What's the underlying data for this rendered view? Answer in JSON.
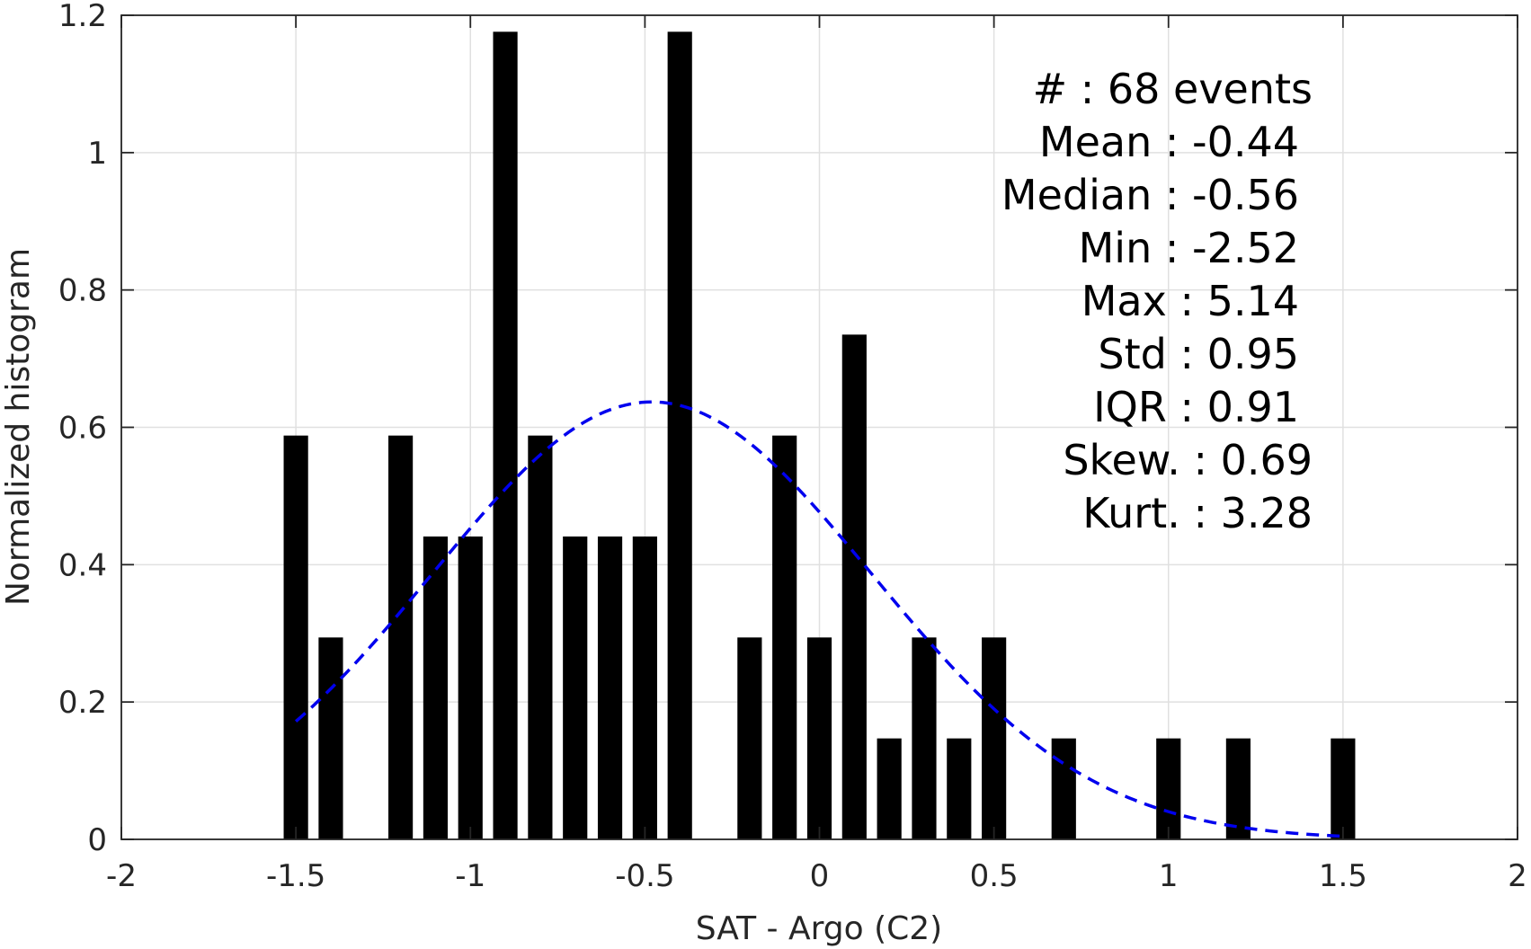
{
  "chart_data": {
    "type": "bar",
    "xlabel": "SAT - Argo (C2)",
    "ylabel": "Normalized histogram",
    "xlim": [
      -2,
      2
    ],
    "ylim": [
      0,
      1.2
    ],
    "xticks": [
      -2,
      -1.5,
      -1,
      -0.5,
      0,
      0.5,
      1,
      1.5,
      2
    ],
    "xtick_labels": [
      "-2",
      "-1.5",
      "-1",
      "-0.5",
      "0",
      "0.5",
      "1",
      "1.5",
      "2"
    ],
    "yticks": [
      0,
      0.2,
      0.4,
      0.6,
      0.8,
      1,
      1.2
    ],
    "ytick_labels": [
      "0",
      "0.2",
      "0.4",
      "0.6",
      "0.8",
      "1",
      "1.2"
    ],
    "grid": true,
    "bar_width": 0.07,
    "bars": [
      {
        "x": -1.5,
        "y": 0.588
      },
      {
        "x": -1.4,
        "y": 0.294
      },
      {
        "x": -1.2,
        "y": 0.588
      },
      {
        "x": -1.1,
        "y": 0.441
      },
      {
        "x": -1.0,
        "y": 0.441
      },
      {
        "x": -0.9,
        "y": 1.176
      },
      {
        "x": -0.8,
        "y": 0.588
      },
      {
        "x": -0.7,
        "y": 0.441
      },
      {
        "x": -0.6,
        "y": 0.441
      },
      {
        "x": -0.5,
        "y": 0.441
      },
      {
        "x": -0.4,
        "y": 1.176
      },
      {
        "x": -0.2,
        "y": 0.294
      },
      {
        "x": -0.1,
        "y": 0.588
      },
      {
        "x": 0.0,
        "y": 0.294
      },
      {
        "x": 0.1,
        "y": 0.735
      },
      {
        "x": 0.2,
        "y": 0.147
      },
      {
        "x": 0.3,
        "y": 0.294
      },
      {
        "x": 0.4,
        "y": 0.147
      },
      {
        "x": 0.5,
        "y": 0.294
      },
      {
        "x": 0.7,
        "y": 0.147
      },
      {
        "x": 1.0,
        "y": 0.147
      },
      {
        "x": 1.2,
        "y": 0.147
      },
      {
        "x": 1.5,
        "y": 0.147
      }
    ],
    "bar_color": "#000000",
    "fit_curve": {
      "style": "dashed",
      "color": "#0000ee",
      "x_range": [
        -1.5,
        1.5
      ],
      "mean": -0.48,
      "peak": 0.637,
      "sigma": 0.63
    }
  },
  "stats": [
    {
      "label": "#  : 68 events"
    },
    {
      "label": "Mean : -0.44"
    },
    {
      "label": "Median : -0.56"
    },
    {
      "label": "Min : -2.52"
    },
    {
      "label": "Max : 5.14"
    },
    {
      "label": "Std : 0.95"
    },
    {
      "label": "IQR : 0.91"
    },
    {
      "label": "Skew. : 0.69"
    },
    {
      "label": "Kurt. : 3.28"
    }
  ]
}
